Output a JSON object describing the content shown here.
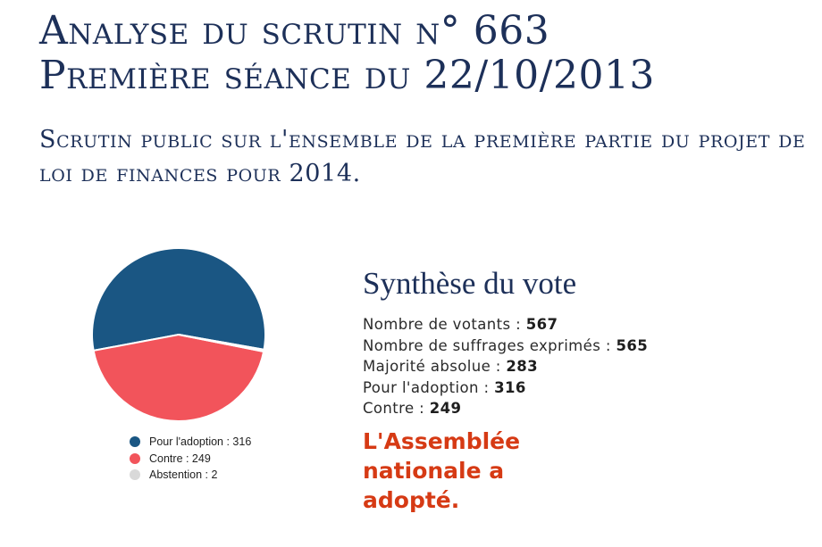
{
  "header": {
    "title_line1": "Analyse du scrutin n° 663",
    "title_line2": "Première séance du 22/10/2013",
    "subtitle": "Scrutin public sur l'ensemble de la première partie du projet de loi de finances pour 2014."
  },
  "chart_data": {
    "type": "pie",
    "slices": [
      {
        "label": "Pour l'adoption : 316",
        "value": 316,
        "color": "#1a5683"
      },
      {
        "label": "Contre : 249",
        "value": 249,
        "color": "#f2545b"
      },
      {
        "label": "Abstention : 2",
        "value": 2,
        "color": "#d9d9d9"
      }
    ],
    "legend_position": "bottom"
  },
  "synthese": {
    "title": "Synthèse du vote",
    "votants_label": "Nombre de votants : ",
    "votants_value": "567",
    "exprimes_label": "Nombre de suffrages exprimés : ",
    "exprimes_value": "565",
    "majorite_label": "Majorité absolue : ",
    "majorite_value": "283",
    "pour_label": "Pour l'adoption : ",
    "pour_value": "316",
    "contre_label": "Contre : ",
    "contre_value": "249",
    "result": "L'Assemblée nationale a adopté."
  }
}
